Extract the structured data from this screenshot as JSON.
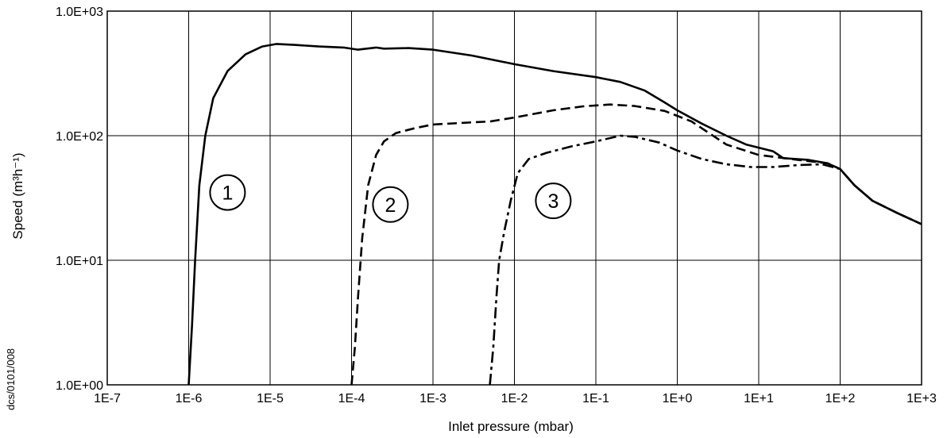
{
  "chart_data": {
    "type": "line",
    "xlabel": "Inlet pressure (mbar)",
    "ylabel": "Speed (m³h⁻¹)",
    "x_scale": "log",
    "y_scale": "log",
    "xlim": [
      1e-07,
      1000
    ],
    "ylim": [
      1,
      1000
    ],
    "x_ticks": [
      1e-07,
      1e-06,
      1e-05,
      0.0001,
      0.001,
      0.01,
      0.1,
      1,
      10,
      100,
      1000
    ],
    "x_tick_labels": [
      "1E-7",
      "1E-6",
      "1E-5",
      "1E-4",
      "1E-3",
      "1E-2",
      "1E-1",
      "1E+0",
      "1E+1",
      "1E+2",
      "1E+3"
    ],
    "y_ticks": [
      1,
      10,
      100,
      1000
    ],
    "y_tick_labels": [
      "1.0E+00",
      "1.0E+01",
      "1.0E+02",
      "1.0E+03"
    ],
    "grid": true,
    "reference": "dcs/0101/008",
    "series": [
      {
        "marker_label": "1",
        "line_style": "solid",
        "label_position": {
          "x": 3e-06,
          "y": 35
        },
        "points": [
          [
            1e-06,
            1
          ],
          [
            1.1e-06,
            3
          ],
          [
            1.2e-06,
            10
          ],
          [
            1.35e-06,
            40
          ],
          [
            1.6e-06,
            100
          ],
          [
            2e-06,
            200
          ],
          [
            3e-06,
            330
          ],
          [
            5e-06,
            450
          ],
          [
            8e-06,
            520
          ],
          [
            1.2e-05,
            545
          ],
          [
            2e-05,
            535
          ],
          [
            4e-05,
            520
          ],
          [
            8e-05,
            510
          ],
          [
            0.00012,
            490
          ],
          [
            0.0002,
            510
          ],
          [
            0.00025,
            500
          ],
          [
            0.0005,
            505
          ],
          [
            0.001,
            490
          ],
          [
            0.003,
            440
          ],
          [
            0.01,
            375
          ],
          [
            0.03,
            330
          ],
          [
            0.1,
            295
          ],
          [
            0.2,
            270
          ],
          [
            0.4,
            230
          ],
          [
            0.7,
            185
          ],
          [
            1,
            160
          ],
          [
            2,
            125
          ],
          [
            4,
            100
          ],
          [
            7,
            85
          ],
          [
            15,
            75
          ],
          [
            20,
            66
          ],
          [
            40,
            64
          ],
          [
            70,
            60
          ],
          [
            100,
            54
          ],
          [
            150,
            40
          ],
          [
            250,
            30
          ],
          [
            500,
            24
          ],
          [
            1000,
            19.5
          ]
        ]
      },
      {
        "marker_label": "2",
        "line_style": "dashed",
        "label_position": {
          "x": 0.0003,
          "y": 28
        },
        "points": [
          [
            0.0001,
            1
          ],
          [
            0.00011,
            2
          ],
          [
            0.00012,
            5
          ],
          [
            0.000135,
            15
          ],
          [
            0.00016,
            40
          ],
          [
            0.0002,
            70
          ],
          [
            0.00025,
            90
          ],
          [
            0.00035,
            105
          ],
          [
            0.0006,
            115
          ],
          [
            0.001,
            123
          ],
          [
            0.003,
            128
          ],
          [
            0.005,
            130
          ],
          [
            0.01,
            140
          ],
          [
            0.03,
            160
          ],
          [
            0.07,
            172
          ],
          [
            0.15,
            178
          ],
          [
            0.3,
            173
          ],
          [
            0.7,
            158
          ],
          [
            1.5,
            130
          ],
          [
            4,
            85
          ],
          [
            10,
            70
          ],
          [
            30,
            64
          ],
          [
            70,
            60
          ],
          [
            100,
            54
          ],
          [
            150,
            40
          ],
          [
            250,
            30
          ],
          [
            500,
            24
          ],
          [
            1000,
            19.5
          ]
        ]
      },
      {
        "marker_label": "3",
        "line_style": "dashdot",
        "label_position": {
          "x": 0.03,
          "y": 30
        },
        "points": [
          [
            0.005,
            1
          ],
          [
            0.0055,
            2
          ],
          [
            0.006,
            5
          ],
          [
            0.0065,
            10
          ],
          [
            0.0075,
            17
          ],
          [
            0.009,
            30
          ],
          [
            0.011,
            50
          ],
          [
            0.015,
            65
          ],
          [
            0.025,
            73
          ],
          [
            0.05,
            82
          ],
          [
            0.1,
            90
          ],
          [
            0.2,
            100
          ],
          [
            0.3,
            98
          ],
          [
            0.6,
            88
          ],
          [
            1,
            76
          ],
          [
            2,
            65
          ],
          [
            4,
            59
          ],
          [
            8,
            56
          ],
          [
            15,
            56
          ],
          [
            30,
            58
          ],
          [
            60,
            59
          ],
          [
            100,
            54
          ],
          [
            150,
            40
          ],
          [
            250,
            30
          ],
          [
            500,
            24
          ],
          [
            1000,
            19.5
          ]
        ]
      }
    ]
  }
}
